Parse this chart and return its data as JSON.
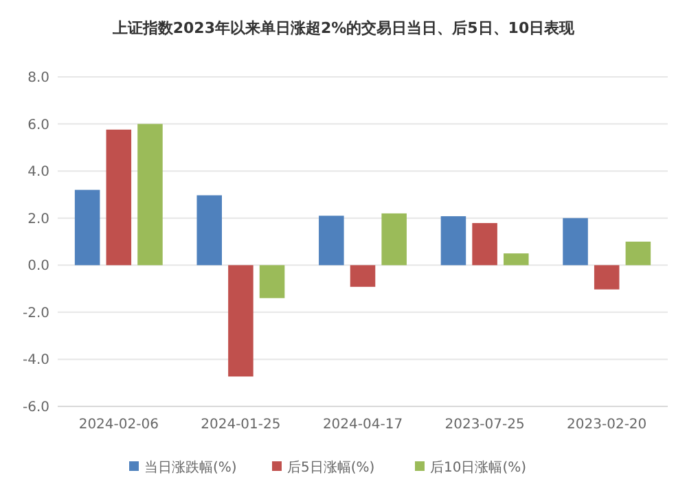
{
  "chart_data": {
    "type": "bar",
    "title": "上证指数2023年以来单日涨超2%的交易日当日、后5日、10日表现",
    "categories": [
      "2024-02-06",
      "2024-01-25",
      "2024-04-17",
      "2023-07-25",
      "2023-02-20"
    ],
    "series": [
      {
        "name": "当日涨跌幅(%)",
        "color": "#4f81bd",
        "values": [
          3.2,
          2.97,
          2.1,
          2.08,
          2.0
        ]
      },
      {
        "name": "后5日涨幅(%)",
        "color": "#c0504d",
        "values": [
          5.76,
          -4.73,
          -0.92,
          1.79,
          -1.03
        ]
      },
      {
        "name": "后10日涨幅(%)",
        "color": "#9bbb59",
        "values": [
          6.0,
          -1.4,
          2.2,
          0.5,
          1.0
        ]
      }
    ],
    "ylim": [
      -6,
      8
    ],
    "yticks": [
      {
        "value": -6,
        "label": "-6.0"
      },
      {
        "value": -4,
        "label": "-4.0"
      },
      {
        "value": -2,
        "label": "-2.0"
      },
      {
        "value": 0,
        "label": "0.0"
      },
      {
        "value": 2,
        "label": "2.0"
      },
      {
        "value": 4,
        "label": "4.0"
      },
      {
        "value": 6,
        "label": "6.0"
      },
      {
        "value": 8,
        "label": "8.0"
      }
    ],
    "grid": "y",
    "legend": "bottom"
  }
}
